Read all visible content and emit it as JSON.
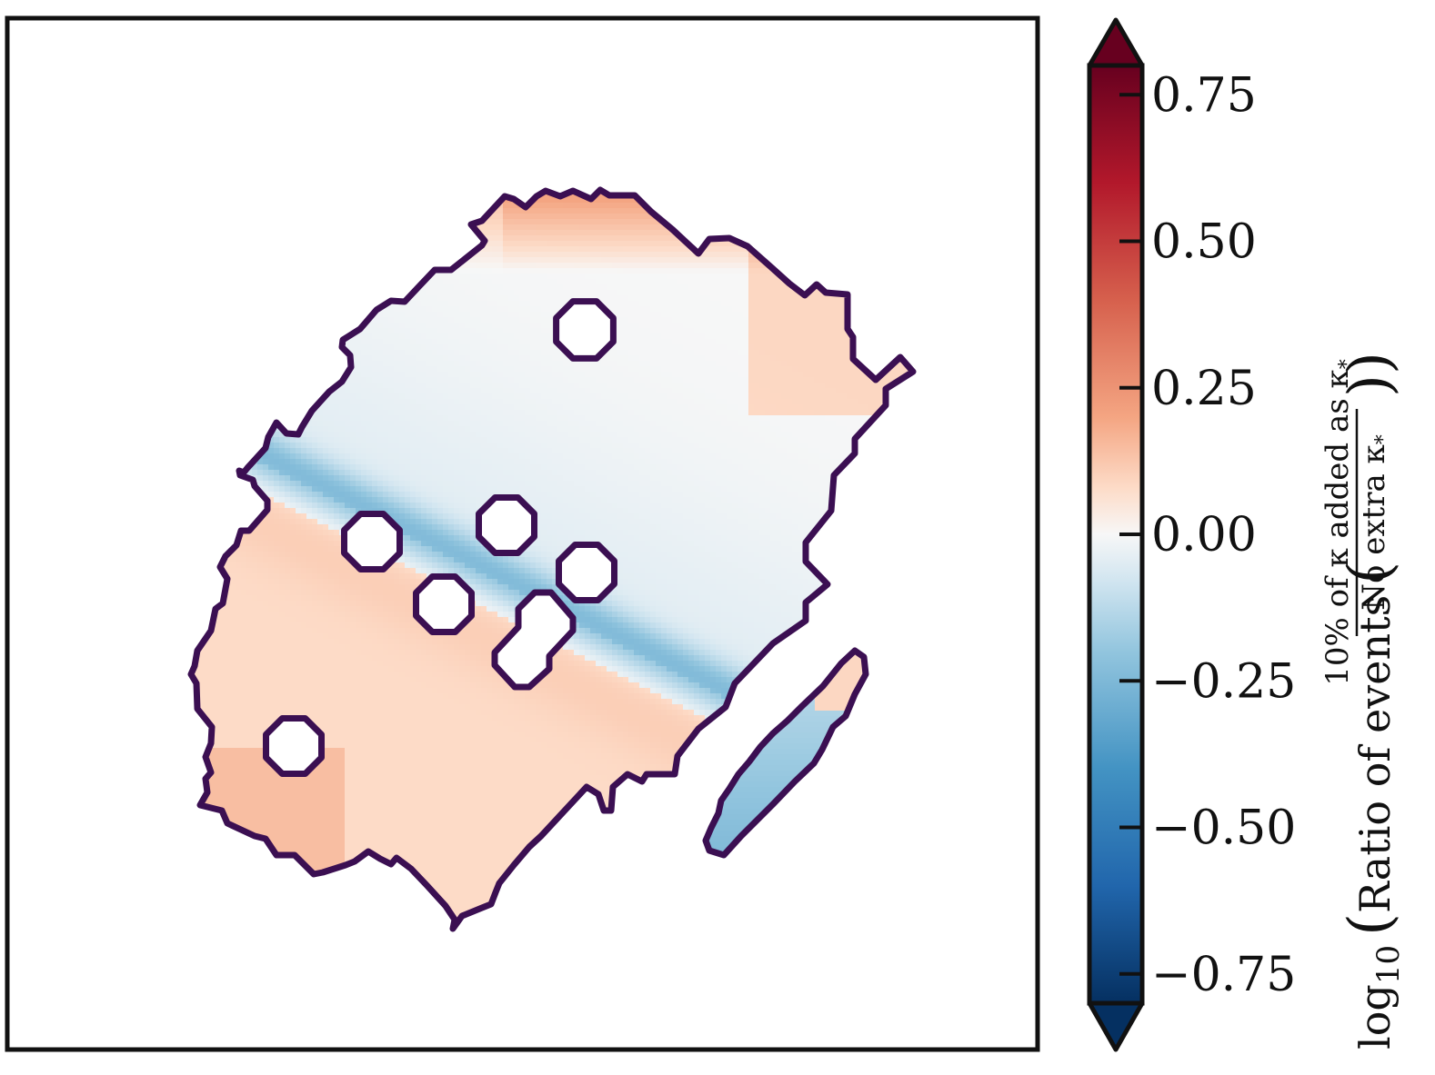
{
  "chart_data": {
    "type": "heatmap",
    "title": "",
    "xlabel": "",
    "ylabel": "",
    "axes": {
      "x_ticks_visible": false,
      "y_ticks_visible": false,
      "grid": false
    },
    "colormap": {
      "name": "RdBu_r",
      "vmin": -0.8,
      "vmax": 0.8,
      "extend": "both",
      "ticks": [
        0.75,
        0.5,
        0.25,
        0.0,
        -0.25,
        -0.5,
        -0.75
      ],
      "tick_labels": [
        "0.75",
        "0.50",
        "0.25",
        "0.00",
        "−0.25",
        "−0.50",
        "−0.75"
      ],
      "stops": [
        {
          "value": -0.8,
          "color": "#053061"
        },
        {
          "value": -0.6,
          "color": "#2166ac"
        },
        {
          "value": -0.4,
          "color": "#4393c3"
        },
        {
          "value": -0.2,
          "color": "#92c5de"
        },
        {
          "value": -0.07,
          "color": "#d1e5f0"
        },
        {
          "value": 0.0,
          "color": "#f7f7f7"
        },
        {
          "value": 0.07,
          "color": "#fddbc7"
        },
        {
          "value": 0.2,
          "color": "#f4a582"
        },
        {
          "value": 0.4,
          "color": "#d6604d"
        },
        {
          "value": 0.6,
          "color": "#b2182b"
        },
        {
          "value": 0.8,
          "color": "#67001f"
        }
      ]
    },
    "colorbar_label": {
      "prefix": "log",
      "subscript": "10",
      "main": "Ratio of events",
      "numerator": "10% of κ added as κ",
      "denominator": "No extra κ",
      "star": "*"
    },
    "regions": {
      "main_region_value_range": [
        -0.22,
        0.25
      ],
      "blue_band_value": -0.2,
      "top_edge_value": 0.2,
      "bottom_left_value": 0.15,
      "lower_strip_value": -0.25
    },
    "contour_color": "#3b0f52"
  }
}
